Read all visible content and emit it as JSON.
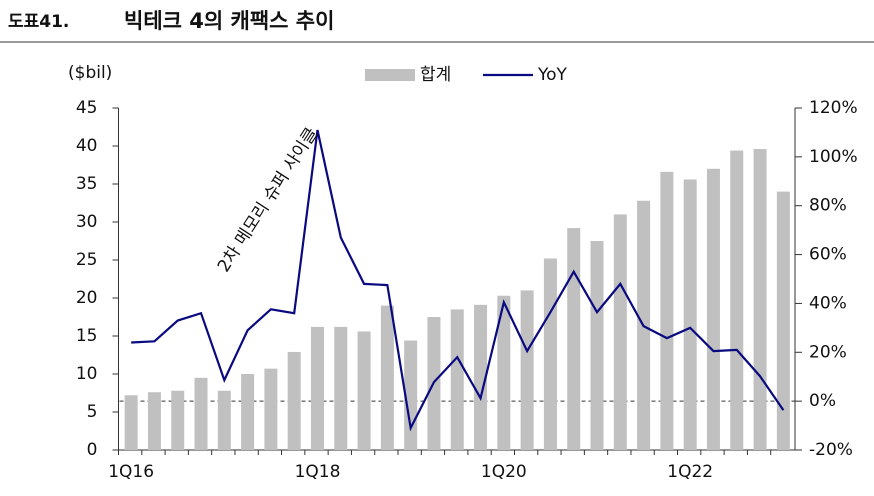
{
  "chart_data": {
    "type": "bar_line",
    "label": "도표41.",
    "title": "빅테크 4의 캐팩스 추이",
    "ylabel": "($bil)",
    "annotation": "2차 메모리 슈퍼 사이클",
    "categories": [
      "1Q16",
      null,
      null,
      null,
      null,
      null,
      null,
      null,
      "1Q18",
      null,
      null,
      null,
      null,
      null,
      null,
      null,
      "1Q20",
      null,
      null,
      null,
      null,
      null,
      null,
      null,
      "1Q22",
      null,
      null,
      null,
      null
    ],
    "series": [
      {
        "name": "합계",
        "type": "bar",
        "color": "#c0c0c0",
        "values": [
          7.2,
          7.6,
          7.8,
          9.5,
          7.8,
          10.0,
          10.7,
          12.9,
          16.2,
          16.2,
          15.6,
          19.0,
          14.4,
          17.5,
          18.5,
          19.1,
          20.3,
          21.0,
          25.2,
          29.2,
          27.5,
          31.0,
          32.8,
          36.6,
          35.6,
          37.0,
          39.4,
          39.6,
          34.0
        ]
      },
      {
        "name": "YoY",
        "type": "line",
        "axis": "y2",
        "color": "#0a0a80",
        "values": [
          24,
          24.5,
          33,
          36,
          8.6,
          29,
          37.6,
          36,
          111,
          67,
          48,
          47.5,
          -11,
          7.8,
          18,
          1.2,
          40.5,
          20.5,
          36.4,
          53,
          36.4,
          48,
          30.7,
          25.8,
          30,
          20.5,
          21,
          10.2,
          -3.7
        ]
      }
    ],
    "ylim": [
      0,
      45
    ],
    "yticks": [
      0,
      5,
      10,
      15,
      20,
      25,
      30,
      35,
      40,
      45
    ],
    "y2lim": [
      -20,
      120
    ],
    "y2ticks": [
      {
        "value": -20,
        "label": "-20%"
      },
      {
        "value": 0,
        "label": "0%"
      },
      {
        "value": 20,
        "label": "20%"
      },
      {
        "value": 40,
        "label": "40%"
      },
      {
        "value": 60,
        "label": "60%"
      },
      {
        "value": 80,
        "label": "80%"
      },
      {
        "value": 100,
        "label": "100%"
      },
      {
        "value": 120,
        "label": "120%"
      }
    ],
    "y2_reference_line": 0,
    "legend": "top"
  }
}
